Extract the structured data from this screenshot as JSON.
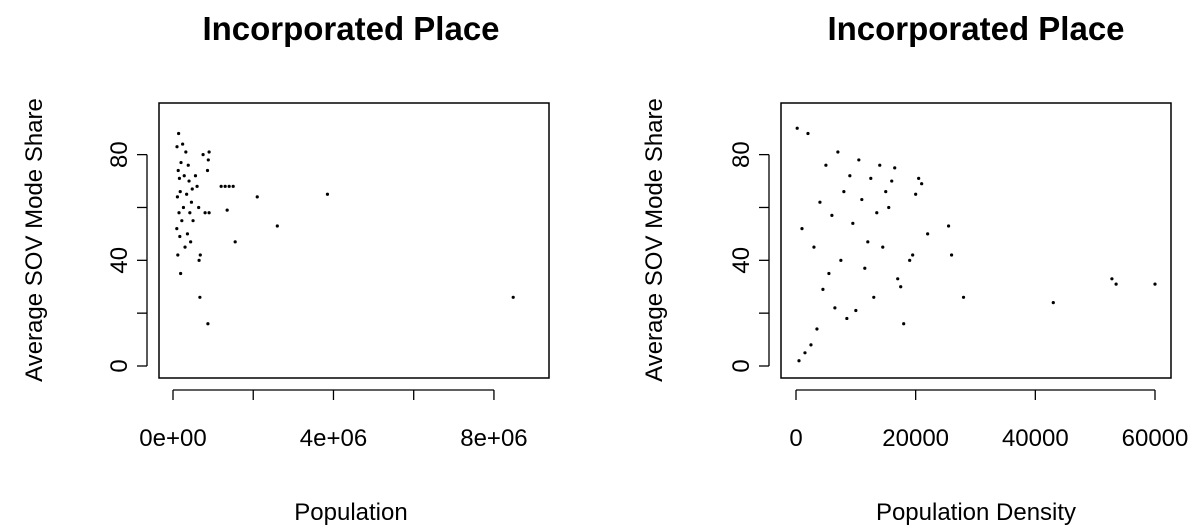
{
  "chart_data": [
    {
      "type": "scatter",
      "title": "Incorporated Place",
      "xlabel": "Population",
      "ylabel": "Average SOV Mode Share",
      "xlim": [
        0,
        8500000
      ],
      "ylim": [
        0,
        95
      ],
      "xticks": [
        0,
        2000000,
        4000000,
        6000000,
        8000000
      ],
      "xtick_labels": [
        "0e+00",
        "",
        "4e+06",
        "",
        "8e+06"
      ],
      "yticks": [
        0,
        20,
        40,
        60,
        80
      ],
      "ytick_labels": [
        "0",
        "",
        "40",
        "",
        "80"
      ],
      "grid": false,
      "point_color": "#000000",
      "series": [
        {
          "points": [
            [
              8480000,
              26
            ],
            [
              3850000,
              65
            ],
            [
              2600000,
              53
            ],
            [
              2100000,
              64
            ],
            [
              1550000,
              47
            ],
            [
              1500000,
              68
            ],
            [
              1400000,
              68
            ],
            [
              1300000,
              68
            ],
            [
              1350000,
              59
            ],
            [
              1200000,
              68
            ],
            [
              900000,
              81
            ],
            [
              900000,
              58
            ],
            [
              880000,
              78
            ],
            [
              870000,
              16
            ],
            [
              860000,
              74
            ],
            [
              800000,
              58
            ],
            [
              750000,
              80
            ],
            [
              680000,
              42
            ],
            [
              670000,
              26
            ],
            [
              650000,
              40
            ],
            [
              640000,
              60
            ],
            [
              600000,
              68
            ],
            [
              560000,
              72
            ],
            [
              500000,
              55
            ],
            [
              480000,
              67
            ],
            [
              460000,
              62
            ],
            [
              440000,
              47
            ],
            [
              420000,
              58
            ],
            [
              400000,
              70
            ],
            [
              380000,
              76
            ],
            [
              360000,
              50
            ],
            [
              340000,
              65
            ],
            [
              320000,
              81
            ],
            [
              300000,
              45
            ],
            [
              280000,
              72
            ],
            [
              260000,
              60
            ],
            [
              240000,
              84
            ],
            [
              220000,
              55
            ],
            [
              200000,
              77
            ],
            [
              190000,
              35
            ],
            [
              180000,
              66
            ],
            [
              170000,
              49
            ],
            [
              160000,
              71
            ],
            [
              150000,
              58
            ],
            [
              140000,
              88
            ],
            [
              130000,
              74
            ],
            [
              120000,
              42
            ],
            [
              110000,
              64
            ],
            [
              100000,
              83
            ],
            [
              95000,
              52
            ]
          ]
        }
      ]
    },
    {
      "type": "scatter",
      "title": "Incorporated Place",
      "xlabel": "Population Density",
      "ylabel": "Average SOV Mode Share",
      "xlim": [
        0,
        60000
      ],
      "ylim": [
        0,
        95
      ],
      "xticks": [
        0,
        20000,
        40000,
        60000
      ],
      "xtick_labels": [
        "0",
        "20000",
        "40000",
        "60000"
      ],
      "yticks": [
        0,
        20,
        40,
        60,
        80
      ],
      "ytick_labels": [
        "0",
        "",
        "40",
        "",
        "80"
      ],
      "grid": false,
      "point_color": "#000000",
      "series": [
        {
          "points": [
            [
              60000,
              31
            ],
            [
              53500,
              31
            ],
            [
              52800,
              33
            ],
            [
              43000,
              24
            ],
            [
              28000,
              26
            ],
            [
              26000,
              42
            ],
            [
              25500,
              53
            ],
            [
              22000,
              50
            ],
            [
              21000,
              69
            ],
            [
              20500,
              71
            ],
            [
              20000,
              65
            ],
            [
              19500,
              42
            ],
            [
              19000,
              40
            ],
            [
              18000,
              16
            ],
            [
              17500,
              30
            ],
            [
              17000,
              33
            ],
            [
              16500,
              75
            ],
            [
              16000,
              70
            ],
            [
              15500,
              60
            ],
            [
              15000,
              66
            ],
            [
              14500,
              45
            ],
            [
              14000,
              76
            ],
            [
              13500,
              58
            ],
            [
              13000,
              26
            ],
            [
              12500,
              71
            ],
            [
              12000,
              47
            ],
            [
              11500,
              37
            ],
            [
              11000,
              63
            ],
            [
              10500,
              78
            ],
            [
              10000,
              21
            ],
            [
              9500,
              54
            ],
            [
              9000,
              72
            ],
            [
              8500,
              18
            ],
            [
              8000,
              66
            ],
            [
              7500,
              40
            ],
            [
              7000,
              81
            ],
            [
              6500,
              22
            ],
            [
              6000,
              57
            ],
            [
              5500,
              35
            ],
            [
              5000,
              76
            ],
            [
              4500,
              29
            ],
            [
              4000,
              62
            ],
            [
              3500,
              14
            ],
            [
              3000,
              45
            ],
            [
              2500,
              8
            ],
            [
              2000,
              88
            ],
            [
              1500,
              5
            ],
            [
              1000,
              52
            ],
            [
              500,
              2
            ],
            [
              200,
              90
            ]
          ]
        }
      ]
    }
  ]
}
